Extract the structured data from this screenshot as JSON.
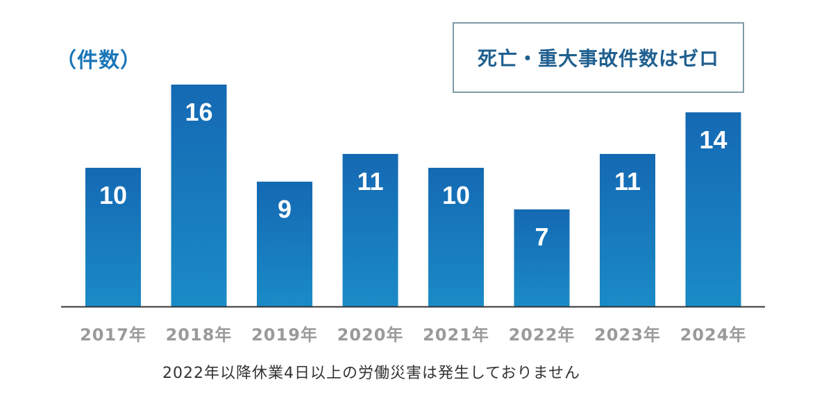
{
  "chart_data": {
    "type": "bar",
    "title": "",
    "unit_label": "（件数）",
    "categories": [
      "2017年",
      "2018年",
      "2019年",
      "2020年",
      "2021年",
      "2022年",
      "2023年",
      "2024年"
    ],
    "values": [
      10,
      16,
      9,
      11,
      10,
      7,
      11,
      14
    ],
    "ylim": [
      0,
      16
    ],
    "grid": false,
    "data_labels": true,
    "callout": "死亡・重大事故件数はゼロ",
    "footnote": "2022年以降休業4日以上の労働災害は発生しておりません",
    "colors": {
      "bar_top": "#1569b3",
      "bar_bottom": "#1a8bc6",
      "axis": "#333333",
      "tick_label": "#9a9a9a",
      "unit_label": "#1a76b8",
      "callout_text": "#1f5f8f",
      "callout_border": "#7f9aa8"
    }
  }
}
